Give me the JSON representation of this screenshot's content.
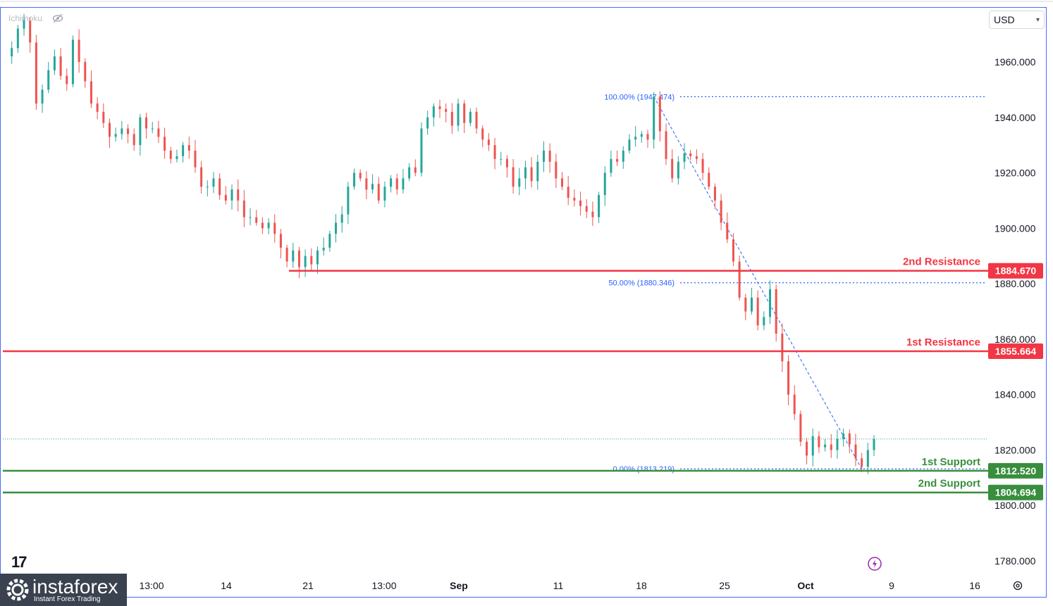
{
  "toolbar": {
    "currency": "USD",
    "indicator_label": "Ichimoku"
  },
  "colors": {
    "up_candle": "#26a69a",
    "down_candle": "#ef5350",
    "resistance": "#f23645",
    "support": "#388e3c",
    "fib": "#2962ff",
    "axis_text": "#131722"
  },
  "icons": [
    "eye-off-icon",
    "tradingview-logo-icon",
    "lightning-icon",
    "settings-icon",
    "instaforex-gear-icon"
  ],
  "watermark": {
    "brand": "instaforex",
    "tagline": "Instant Forex Trading"
  },
  "chart_data": {
    "type": "candlestick",
    "title": "",
    "ylim": [
      1776,
      1982
    ],
    "y_ticks": [
      1960,
      1940,
      1920,
      1900,
      1880,
      1860,
      1840,
      1820,
      1800,
      1780
    ],
    "y_tick_labels": [
      "1960.000",
      "1940.000",
      "1920.000",
      "1900.000",
      "1880.000",
      "1860.000",
      "1840.000",
      "1820.000",
      "1800.000",
      "1780.000"
    ],
    "x_tick_labels": [
      "13:00",
      "14",
      "21",
      "13:00",
      "Sep",
      "11",
      "18",
      "25",
      "Oct",
      "9",
      "16"
    ],
    "current_price": 1824,
    "close_path": [
      [
        0,
        1962
      ],
      [
        1,
        1965
      ],
      [
        2,
        1972
      ],
      [
        3,
        1975
      ],
      [
        4,
        1967
      ],
      [
        5,
        1945
      ],
      [
        6,
        1950
      ],
      [
        7,
        1957
      ],
      [
        8,
        1962
      ],
      [
        9,
        1955
      ],
      [
        10,
        1952
      ],
      [
        11,
        1968
      ],
      [
        12,
        1960
      ],
      [
        13,
        1953
      ],
      [
        14,
        1945
      ],
      [
        15,
        1942
      ],
      [
        16,
        1938
      ],
      [
        17,
        1933
      ],
      [
        18,
        1934
      ],
      [
        19,
        1936
      ],
      [
        20,
        1934
      ],
      [
        21,
        1930
      ],
      [
        22,
        1940
      ],
      [
        23,
        1936
      ],
      [
        24,
        1936
      ],
      [
        25,
        1933
      ],
      [
        26,
        1928
      ],
      [
        27,
        1925
      ],
      [
        28,
        1926
      ],
      [
        29,
        1930
      ],
      [
        30,
        1928
      ],
      [
        31,
        1922
      ],
      [
        32,
        1915
      ],
      [
        33,
        1915
      ],
      [
        34,
        1918
      ],
      [
        35,
        1912
      ],
      [
        36,
        1910
      ],
      [
        37,
        1914
      ],
      [
        38,
        1910
      ],
      [
        39,
        1904
      ],
      [
        40,
        1904
      ],
      [
        41,
        1902
      ],
      [
        42,
        1900
      ],
      [
        43,
        1902
      ],
      [
        44,
        1898
      ],
      [
        45,
        1893
      ],
      [
        46,
        1888
      ],
      [
        47,
        1892
      ],
      [
        48,
        1886
      ],
      [
        49,
        1890
      ],
      [
        50,
        1887
      ],
      [
        51,
        1892
      ],
      [
        52,
        1893
      ],
      [
        53,
        1898
      ],
      [
        54,
        1902
      ],
      [
        55,
        1905
      ],
      [
        56,
        1915
      ],
      [
        57,
        1920
      ],
      [
        58,
        1918
      ],
      [
        59,
        1914
      ],
      [
        60,
        1916
      ],
      [
        61,
        1910
      ],
      [
        62,
        1915
      ],
      [
        63,
        1918
      ],
      [
        64,
        1914
      ],
      [
        65,
        1918
      ],
      [
        66,
        1922
      ],
      [
        67,
        1920
      ],
      [
        68,
        1936
      ],
      [
        69,
        1940
      ],
      [
        70,
        1944
      ],
      [
        71,
        1943
      ],
      [
        72,
        1942
      ],
      [
        73,
        1937
      ],
      [
        74,
        1945
      ],
      [
        75,
        1938
      ],
      [
        76,
        1942
      ],
      [
        77,
        1936
      ],
      [
        78,
        1932
      ],
      [
        79,
        1930
      ],
      [
        80,
        1925
      ],
      [
        81,
        1925
      ],
      [
        82,
        1922
      ],
      [
        83,
        1915
      ],
      [
        84,
        1918
      ],
      [
        85,
        1922
      ],
      [
        86,
        1917
      ],
      [
        87,
        1924
      ],
      [
        88,
        1928
      ],
      [
        89,
        1924
      ],
      [
        90,
        1918
      ],
      [
        91,
        1915
      ],
      [
        92,
        1911
      ],
      [
        93,
        1910
      ],
      [
        94,
        1908
      ],
      [
        95,
        1906
      ],
      [
        96,
        1904
      ],
      [
        97,
        1912
      ],
      [
        98,
        1920
      ],
      [
        99,
        1925
      ],
      [
        100,
        1924
      ],
      [
        101,
        1928
      ],
      [
        102,
        1932
      ],
      [
        103,
        1933
      ],
      [
        104,
        1934
      ],
      [
        105,
        1932
      ],
      [
        106,
        1947.5
      ],
      [
        107,
        1935
      ],
      [
        108,
        1925
      ],
      [
        109,
        1918
      ],
      [
        110,
        1924
      ],
      [
        111,
        1927
      ],
      [
        112,
        1926
      ],
      [
        113,
        1925
      ],
      [
        114,
        1920
      ],
      [
        115,
        1915
      ],
      [
        116,
        1910
      ],
      [
        117,
        1902
      ],
      [
        118,
        1896
      ],
      [
        119,
        1888
      ],
      [
        120,
        1875
      ],
      [
        121,
        1870
      ],
      [
        122,
        1875
      ],
      [
        123,
        1865
      ],
      [
        124,
        1868
      ],
      [
        125,
        1878
      ],
      [
        126,
        1862
      ],
      [
        127,
        1852
      ],
      [
        128,
        1840
      ],
      [
        129,
        1833
      ],
      [
        130,
        1823
      ],
      [
        131,
        1818
      ],
      [
        132,
        1825
      ],
      [
        133,
        1821
      ],
      [
        134,
        1822
      ],
      [
        135,
        1820
      ],
      [
        136,
        1824
      ],
      [
        137,
        1826
      ],
      [
        138,
        1822
      ],
      [
        139,
        1817
      ],
      [
        140,
        1814
      ],
      [
        141,
        1820
      ],
      [
        142,
        1824
      ]
    ],
    "horizontal_levels": [
      {
        "name": "2nd Resistance",
        "value": 1884.67,
        "value_label": "1884.670",
        "kind": "resistance"
      },
      {
        "name": "1st Resistance",
        "value": 1855.664,
        "value_label": "1855.664",
        "kind": "resistance"
      },
      {
        "name": "1st Support",
        "value": 1812.52,
        "value_label": "1812.520",
        "kind": "support"
      },
      {
        "name": "2nd Support",
        "value": 1804.694,
        "value_label": "1804.694",
        "kind": "support"
      }
    ],
    "fibonacci": [
      {
        "label": "100.00% (1947.474)",
        "value": 1947.474
      },
      {
        "label": "50.00% (1880.346)",
        "value": 1880.346
      },
      {
        "label": "0.00% (1813.219)",
        "value": 1813.219
      }
    ],
    "fib_trend_line": {
      "from": [
        106,
        1947.474
      ],
      "to": [
        140,
        1813.219
      ]
    }
  }
}
